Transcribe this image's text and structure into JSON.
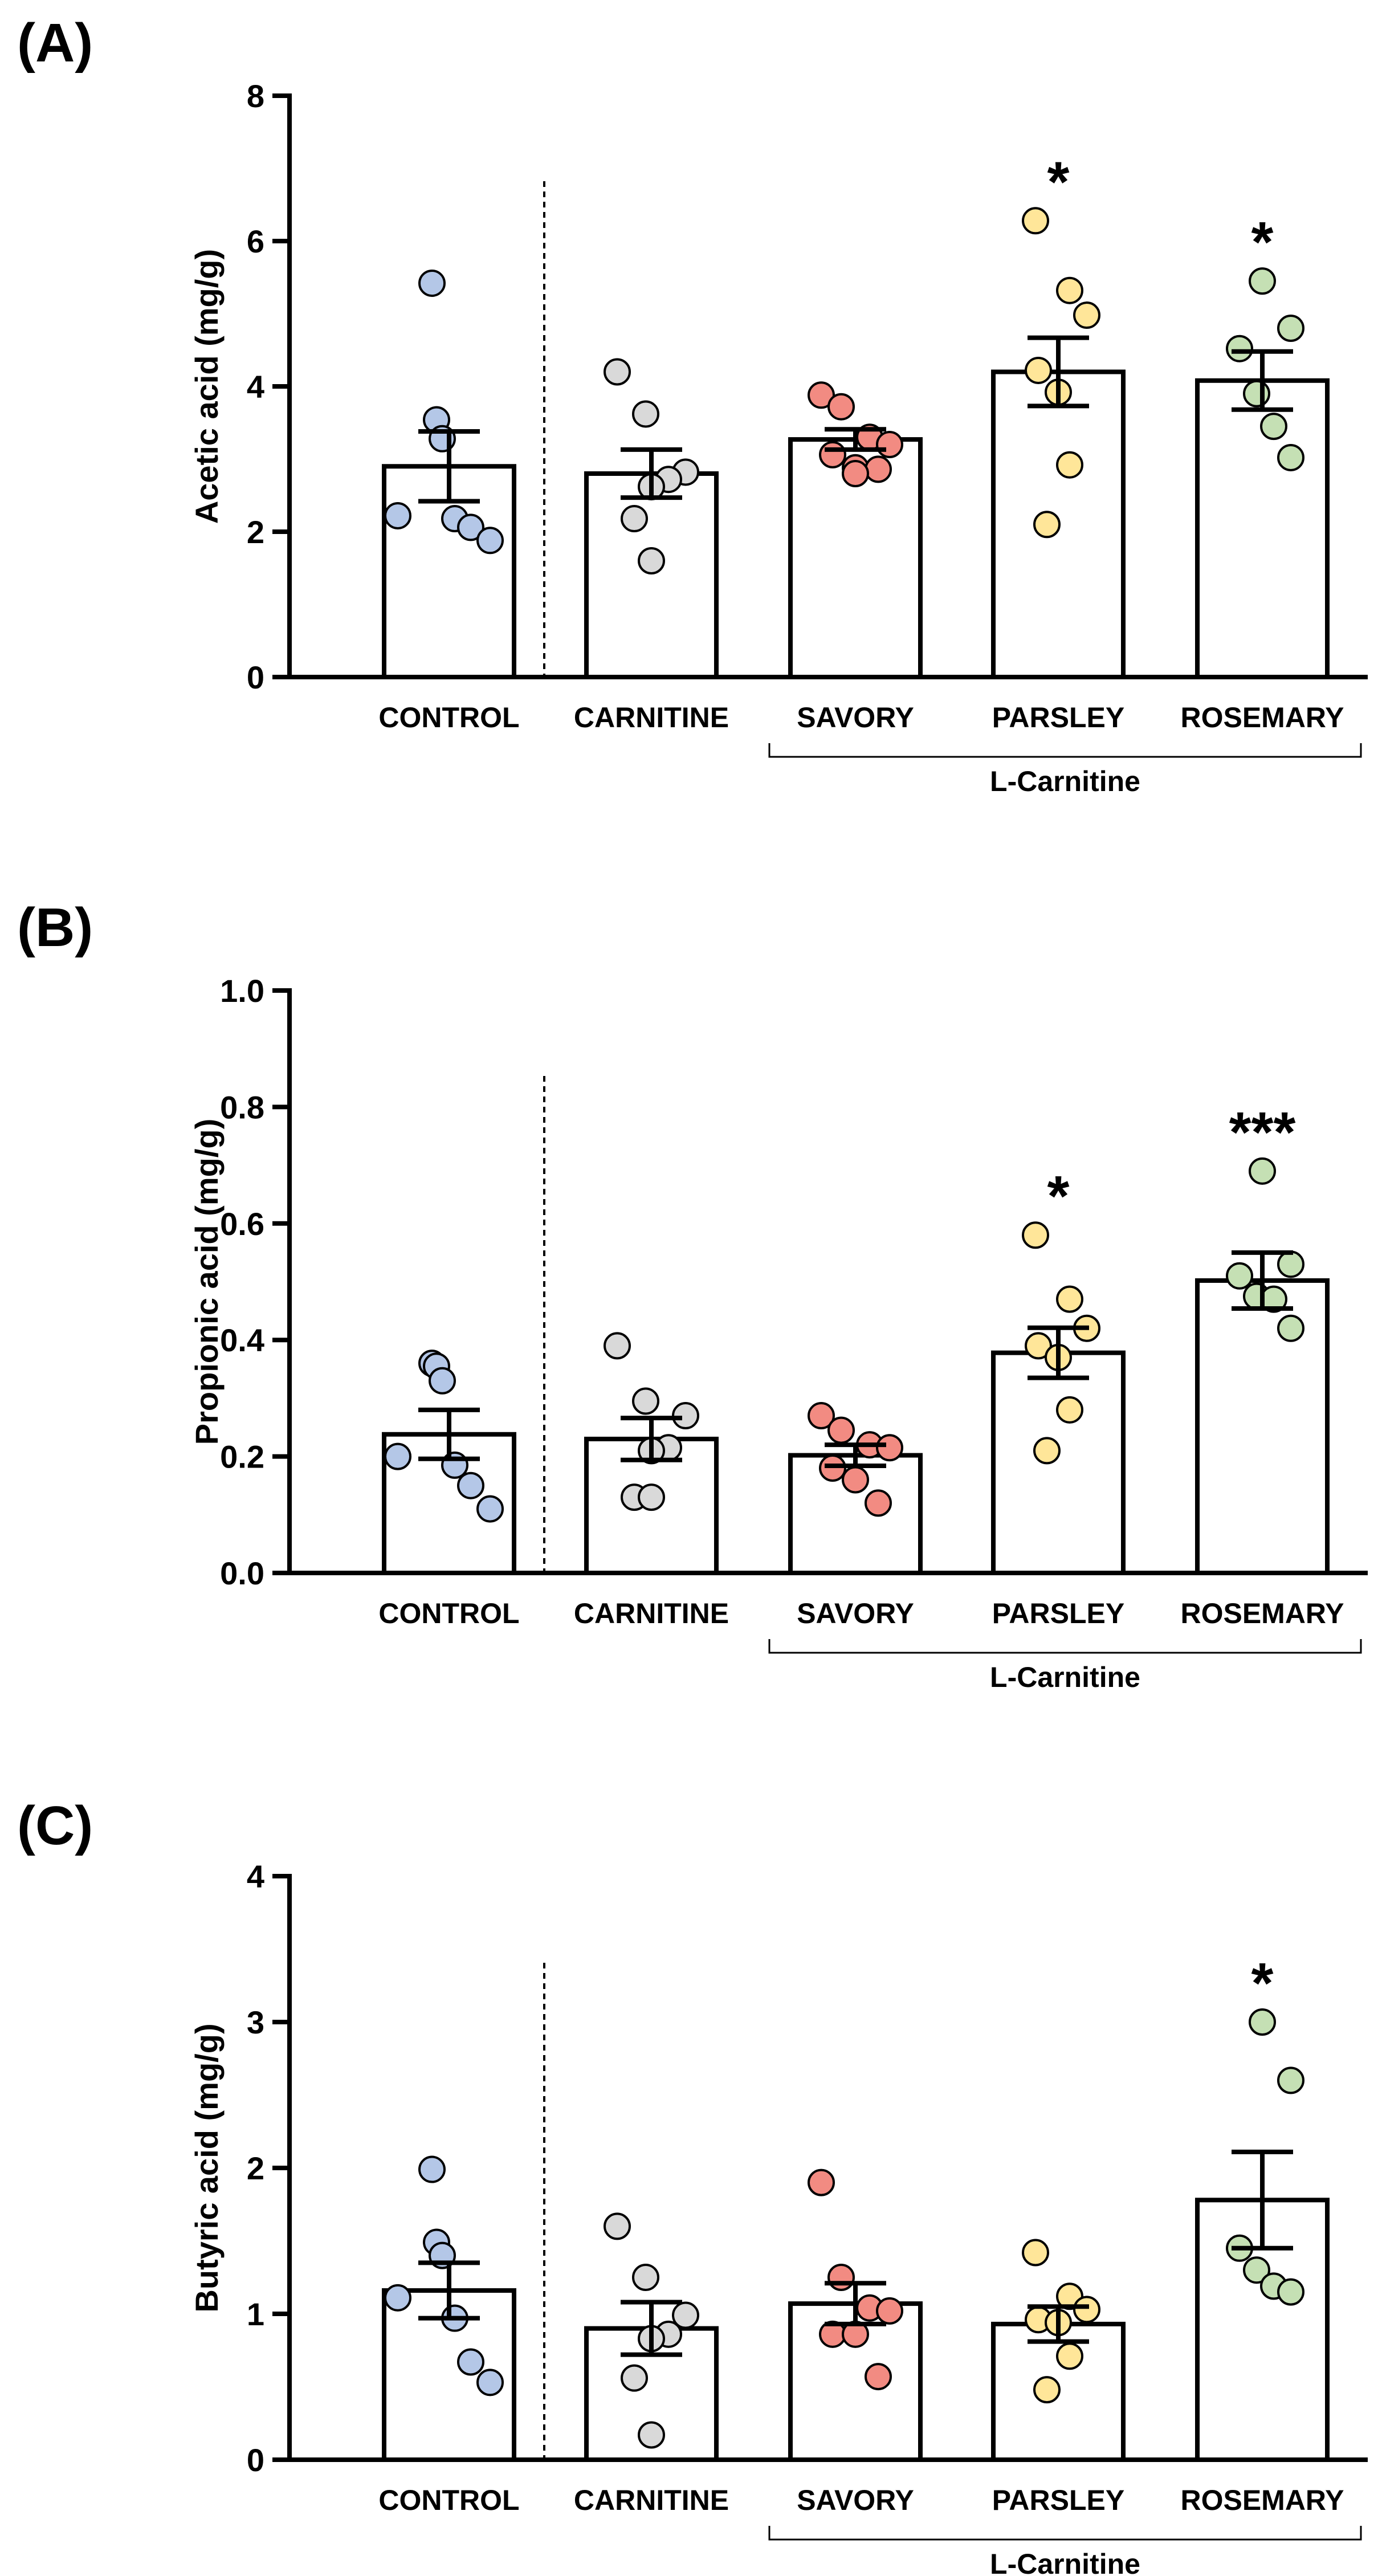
{
  "chart_data": [
    {
      "type": "bar",
      "panel": "(A)",
      "ylabel": "Acetic acid (mg/g)",
      "ylim": [
        0,
        8
      ],
      "yticks": [
        0,
        2,
        4,
        6,
        8
      ],
      "ytick_labels": [
        "0",
        "2",
        "4",
        "6",
        "8"
      ],
      "categories": [
        "CONTROL",
        "CARNITINE",
        "SAVORY",
        "PARSLEY",
        "ROSEMARY"
      ],
      "values": [
        2.9,
        2.8,
        3.27,
        4.2,
        4.08
      ],
      "sem": [
        0.48,
        0.33,
        0.14,
        0.47,
        0.4
      ],
      "points": [
        [
          5.42,
          3.54,
          3.28,
          2.22,
          2.18,
          2.06,
          1.88
        ],
        [
          4.2,
          3.62,
          2.82,
          2.72,
          2.62,
          2.18,
          1.6
        ],
        [
          3.88,
          3.72,
          3.3,
          3.2,
          3.06,
          2.88,
          2.86,
          2.8
        ],
        [
          6.28,
          5.32,
          4.98,
          4.22,
          3.92,
          2.92,
          2.1
        ],
        [
          5.45,
          4.8,
          4.52,
          3.9,
          3.45,
          3.02
        ]
      ],
      "point_colors": [
        "#b4c7e7",
        "#d9d9d9",
        "#f28b82",
        "#ffe699",
        "#c5e0b4"
      ],
      "significance": [
        "",
        "",
        "",
        "*",
        "*"
      ],
      "bracket_label": "L-Carnitine"
    },
    {
      "type": "bar",
      "panel": "(B)",
      "ylabel": "Propionic acid (mg/g)",
      "ylim": [
        0,
        1
      ],
      "yticks": [
        0,
        0.2,
        0.4,
        0.6,
        0.8,
        1.0
      ],
      "ytick_labels": [
        "0.0",
        "0.2",
        "0.4",
        "0.6",
        "0.8",
        "1.0"
      ],
      "categories": [
        "CONTROL",
        "CARNITINE",
        "SAVORY",
        "PARSLEY",
        "ROSEMARY"
      ],
      "values": [
        0.238,
        0.23,
        0.202,
        0.378,
        0.502
      ],
      "sem": [
        0.042,
        0.036,
        0.018,
        0.043,
        0.048
      ],
      "points": [
        [
          0.36,
          0.355,
          0.33,
          0.2,
          0.185,
          0.15,
          0.11
        ],
        [
          0.39,
          0.295,
          0.27,
          0.215,
          0.21,
          0.13,
          0.13
        ],
        [
          0.27,
          0.245,
          0.22,
          0.215,
          0.18,
          0.16,
          0.12
        ],
        [
          0.58,
          0.47,
          0.42,
          0.39,
          0.37,
          0.28,
          0.21
        ],
        [
          0.69,
          0.53,
          0.51,
          0.475,
          0.47,
          0.42
        ]
      ],
      "point_colors": [
        "#b4c7e7",
        "#d9d9d9",
        "#f28b82",
        "#ffe699",
        "#c5e0b4"
      ],
      "significance": [
        "",
        "",
        "",
        "*",
        "***"
      ],
      "bracket_label": "L-Carnitine"
    },
    {
      "type": "bar",
      "panel": "(C)",
      "ylabel": "Butyric acid (mg/g)",
      "ylim": [
        0,
        4
      ],
      "yticks": [
        0,
        1,
        2,
        3,
        4
      ],
      "ytick_labels": [
        "0",
        "1",
        "2",
        "3",
        "4"
      ],
      "categories": [
        "CONTROL",
        "CARNITINE",
        "SAVORY",
        "PARSLEY",
        "ROSEMARY"
      ],
      "values": [
        1.16,
        0.9,
        1.07,
        0.93,
        1.78
      ],
      "sem": [
        0.19,
        0.18,
        0.14,
        0.12,
        0.33
      ],
      "points": [
        [
          1.99,
          1.49,
          1.4,
          1.11,
          0.97,
          0.67,
          0.53
        ],
        [
          1.6,
          1.25,
          0.99,
          0.86,
          0.83,
          0.56,
          0.17
        ],
        [
          1.9,
          1.25,
          1.04,
          1.02,
          0.86,
          0.86,
          0.57
        ],
        [
          1.42,
          1.12,
          1.03,
          0.96,
          0.94,
          0.71,
          0.48
        ],
        [
          3.0,
          2.6,
          1.45,
          1.3,
          1.19,
          1.15
        ]
      ],
      "point_colors": [
        "#b4c7e7",
        "#d9d9d9",
        "#f28b82",
        "#ffe699",
        "#c5e0b4"
      ],
      "significance": [
        "",
        "",
        "",
        "",
        "*"
      ],
      "bracket_label": "L-Carnitine"
    }
  ]
}
